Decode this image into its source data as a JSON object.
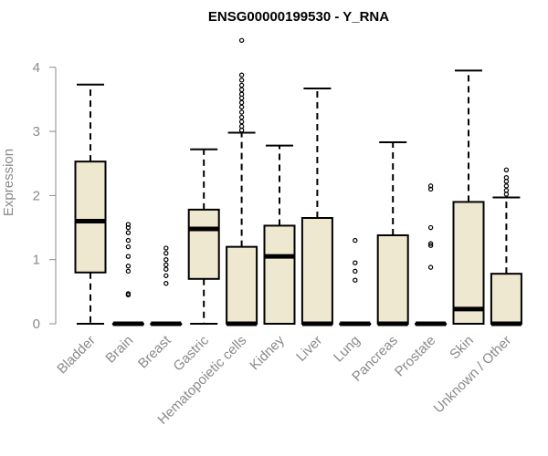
{
  "chart_data": {
    "type": "boxplot",
    "title": "ENSG00000199530 - Y_RNA",
    "ylabel": "Expression",
    "xlabel": "",
    "ylim": [
      0,
      4.4
    ],
    "yticks": [
      0,
      1,
      2,
      3,
      4
    ],
    "grid": false,
    "box_fill": "#efe8d0",
    "categories": [
      "Bladder",
      "Brain",
      "Breast",
      "Gastric",
      "Hematopoietic cells",
      "Kidney",
      "Liver",
      "Lung",
      "Pancreas",
      "Prostate",
      "Skin",
      "Unknown / Other"
    ],
    "boxes": [
      {
        "category": "Bladder",
        "whisker_low": 0,
        "q1": 0.8,
        "median": 1.6,
        "q3": 2.53,
        "whisker_high": 3.73,
        "outliers": []
      },
      {
        "category": "Brain",
        "whisker_low": 0,
        "q1": 0,
        "median": 0,
        "q3": 0,
        "whisker_high": 0,
        "outliers": [
          0.45,
          0.47,
          0.82,
          0.9,
          1.05,
          1.2,
          1.3,
          1.42,
          1.5,
          1.55
        ]
      },
      {
        "category": "Breast",
        "whisker_low": 0,
        "q1": 0,
        "median": 0,
        "q3": 0,
        "whisker_high": 0,
        "outliers": [
          0.63,
          0.75,
          0.85,
          0.92,
          1.0,
          1.1,
          1.18
        ]
      },
      {
        "category": "Gastric",
        "whisker_low": 0,
        "q1": 0.7,
        "median": 1.48,
        "q3": 1.78,
        "whisker_high": 2.72,
        "outliers": []
      },
      {
        "category": "Hematopoietic cells",
        "whisker_low": 0,
        "q1": 0,
        "median": 0,
        "q3": 1.2,
        "whisker_high": 2.98,
        "outliers": [
          3.02,
          3.08,
          3.15,
          3.22,
          3.3,
          3.38,
          3.45,
          3.52,
          3.58,
          3.65,
          3.72,
          3.8,
          3.88,
          4.42
        ]
      },
      {
        "category": "Kidney",
        "whisker_low": 0,
        "q1": 0,
        "median": 1.05,
        "q3": 1.53,
        "whisker_high": 2.78,
        "outliers": []
      },
      {
        "category": "Liver",
        "whisker_low": 0,
        "q1": 0,
        "median": 0,
        "q3": 1.65,
        "whisker_high": 3.67,
        "outliers": []
      },
      {
        "category": "Lung",
        "whisker_low": 0,
        "q1": 0,
        "median": 0,
        "q3": 0,
        "whisker_high": 0,
        "outliers": [
          0.68,
          0.82,
          0.95,
          1.3
        ]
      },
      {
        "category": "Pancreas",
        "whisker_low": 0,
        "q1": 0,
        "median": 0,
        "q3": 1.38,
        "whisker_high": 2.83,
        "outliers": []
      },
      {
        "category": "Prostate",
        "whisker_low": 0,
        "q1": 0,
        "median": 0,
        "q3": 0,
        "whisker_high": 0,
        "outliers": [
          0.88,
          1.22,
          1.25,
          1.5,
          2.1,
          2.15
        ]
      },
      {
        "category": "Skin",
        "whisker_low": 0,
        "q1": 0,
        "median": 0.23,
        "q3": 1.9,
        "whisker_high": 3.95,
        "outliers": []
      },
      {
        "category": "Unknown / Other",
        "whisker_low": 0,
        "q1": 0,
        "median": 0,
        "q3": 0.78,
        "whisker_high": 1.97,
        "outliers": [
          2.02,
          2.08,
          2.15,
          2.22,
          2.28,
          2.4
        ]
      }
    ]
  }
}
